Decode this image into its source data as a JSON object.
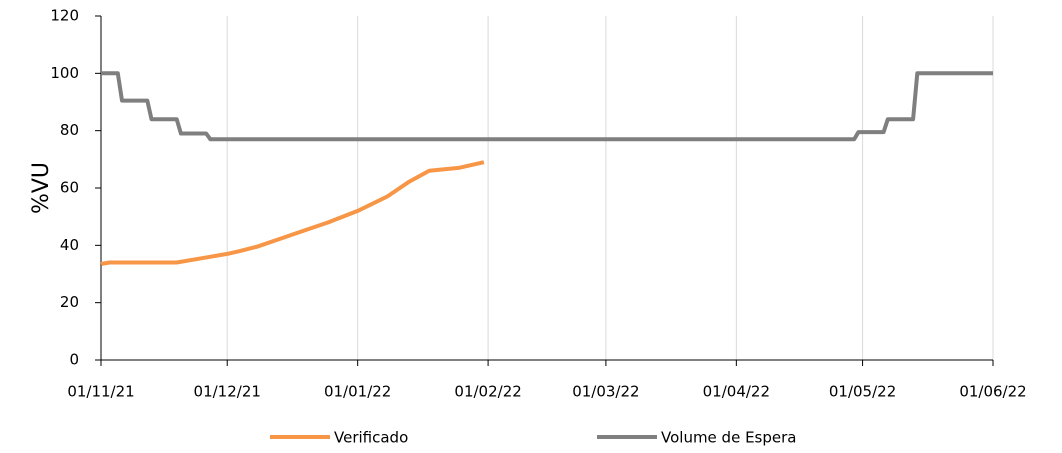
{
  "chart_data": {
    "type": "line",
    "y_label": "%VU",
    "xlim": [
      "01/11/21",
      "01/06/22"
    ],
    "xticks": [
      "01/11/21",
      "01/12/21",
      "01/01/22",
      "01/02/22",
      "01/03/22",
      "01/04/22",
      "01/05/22",
      "01/06/22"
    ],
    "ylim": [
      0,
      120
    ],
    "yticks": [
      0,
      20,
      40,
      60,
      80,
      100,
      120
    ],
    "grid": "x",
    "legend": "bottom",
    "series": [
      {
        "name": "Verificado",
        "color": "#f79646",
        "x": [
          "01/11/21",
          "03/11/21",
          "19/11/21",
          "25/11/21",
          "01/12/21",
          "04/12/21",
          "08/12/21",
          "13/12/21",
          "18/12/21",
          "25/12/21",
          "01/01/22",
          "08/01/22",
          "13/01/22",
          "18/01/22",
          "25/01/22",
          "31/01/22"
        ],
        "values": [
          33.5,
          34,
          34,
          35.5,
          37,
          38,
          39.5,
          42,
          44.5,
          48,
          52,
          57,
          62,
          66,
          67,
          69
        ]
      },
      {
        "name": "Volume de Espera",
        "color": "#7f7f7f",
        "x": [
          "01/11/21",
          "05/11/21",
          "06/11/21",
          "12/11/21",
          "13/11/21",
          "19/11/21",
          "20/11/21",
          "26/11/21",
          "27/11/21",
          "29/04/22",
          "30/04/22",
          "06/05/22",
          "07/05/22",
          "13/05/22",
          "14/05/22",
          "01/06/22"
        ],
        "values": [
          100,
          100,
          90.5,
          90.5,
          84,
          84,
          79,
          79,
          77,
          77,
          79.5,
          79.5,
          84,
          84,
          100,
          100
        ]
      }
    ]
  }
}
